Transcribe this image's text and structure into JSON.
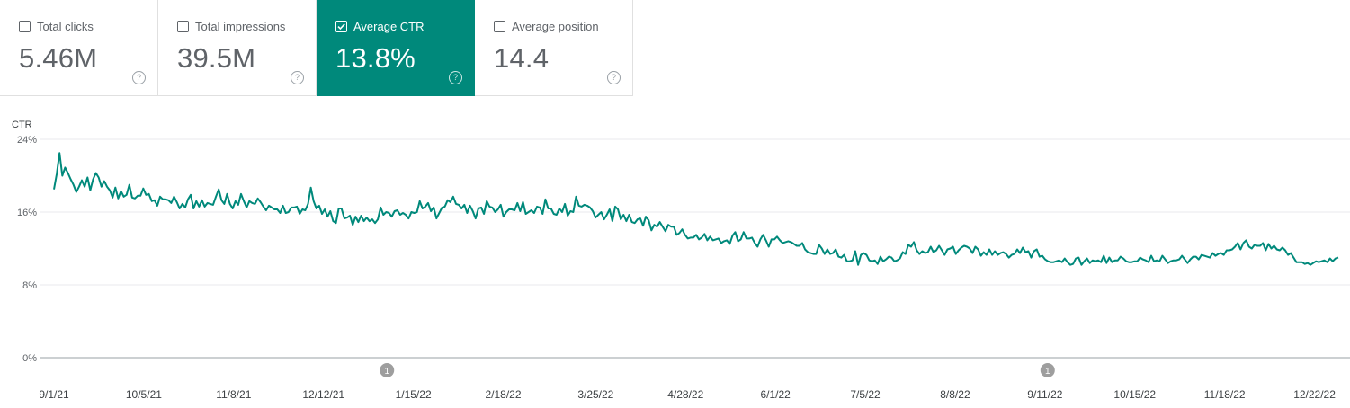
{
  "metrics": [
    {
      "label": "Total clicks",
      "value": "5.46M",
      "selected": false
    },
    {
      "label": "Total impressions",
      "value": "39.5M",
      "selected": false
    },
    {
      "label": "Average CTR",
      "value": "13.8%",
      "selected": true
    },
    {
      "label": "Average position",
      "value": "14.4",
      "selected": false
    }
  ],
  "help_glyph": "?",
  "chart_data": {
    "type": "line",
    "ylabel": "CTR",
    "ylim": [
      0,
      24
    ],
    "y_ticks": [
      "24%",
      "16%",
      "8%",
      "0%"
    ],
    "y_tick_values": [
      24,
      16,
      8,
      0
    ],
    "x_ticks": [
      "9/1/21",
      "10/5/21",
      "11/8/21",
      "12/12/21",
      "1/15/22",
      "2/18/22",
      "3/25/22",
      "4/28/22",
      "6/1/22",
      "7/5/22",
      "8/8/22",
      "9/11/22",
      "10/15/22",
      "11/18/22",
      "12/22/22"
    ],
    "annotations": [
      {
        "date": "1/5/22",
        "label": "1"
      },
      {
        "date": "9/12/22",
        "label": "1"
      }
    ],
    "line_color": "#00897b",
    "grid": true,
    "series": [
      {
        "x_start": "9/1/21",
        "x_end": "12/31/22",
        "values": [
          18.5,
          20.2,
          22.5,
          20.0,
          20.9,
          20.3,
          19.6,
          19.0,
          18.2,
          18.8,
          19.5,
          18.8,
          19.8,
          18.4,
          19.6,
          20.3,
          19.8,
          18.8,
          19.4,
          18.8,
          18.4,
          17.6,
          18.7,
          17.5,
          18.3,
          17.7,
          17.9,
          19.0,
          17.6,
          17.5,
          17.8,
          17.8,
          18.6,
          17.9,
          18.0,
          17.2,
          17.3,
          16.7,
          17.7,
          17.4,
          17.4,
          17.3,
          17.0,
          17.7,
          17.1,
          16.4,
          16.9,
          16.5,
          17.4,
          17.9,
          16.4,
          17.2,
          16.6,
          17.3,
          16.6,
          17.0,
          16.9,
          16.8,
          17.7,
          18.5,
          17.3,
          16.9,
          18.0,
          16.9,
          16.4,
          17.2,
          16.8,
          18.0,
          17.2,
          16.5,
          17.2,
          17.0,
          16.9,
          17.5,
          17.1,
          16.6,
          16.2,
          16.7,
          16.5,
          16.3,
          16.3,
          15.9,
          16.7,
          15.9,
          16.0,
          16.5,
          16.5,
          16.6,
          15.8,
          16.3,
          16.2,
          16.9,
          18.7,
          17.2,
          16.4,
          16.7,
          15.8,
          16.3,
          15.5,
          16.1,
          15.0,
          14.8,
          16.4,
          16.4,
          15.3,
          15.4,
          15.6,
          14.6,
          15.5,
          14.9,
          15.6,
          15.0,
          15.4,
          15.0,
          15.2,
          14.8,
          15.2,
          16.5,
          15.7,
          16.0,
          15.9,
          15.5,
          16.1,
          16.2,
          15.7,
          15.9,
          15.7,
          15.3,
          16.0,
          15.9,
          16.0,
          17.2,
          16.4,
          16.6,
          17.0,
          16.1,
          16.5,
          15.3,
          15.9,
          16.5,
          16.6,
          17.3,
          17.1,
          17.7,
          16.9,
          16.8,
          16.4,
          16.8,
          15.9,
          16.7,
          16.1,
          15.3,
          16.4,
          16.5,
          15.8,
          17.2,
          16.6,
          16.5,
          16.0,
          16.3,
          16.8,
          15.5,
          16.0,
          16.3,
          16.3,
          16.2,
          17.0,
          16.1,
          17.1,
          15.8,
          16.0,
          16.2,
          15.9,
          16.6,
          16.5,
          15.8,
          17.4,
          16.4,
          16.4,
          15.8,
          15.7,
          16.4,
          16.0,
          16.9,
          15.6,
          16.1,
          16.0,
          17.7,
          16.7,
          16.6,
          16.8,
          16.7,
          16.5,
          16.1,
          15.4,
          15.7,
          16.0,
          15.2,
          15.7,
          16.3,
          15.0,
          16.6,
          16.3,
          15.2,
          15.7,
          15.0,
          15.7,
          14.9,
          14.8,
          15.2,
          15.3,
          14.5,
          15.5,
          15.1,
          14.0,
          14.6,
          14.4,
          14.9,
          14.4,
          13.9,
          14.6,
          14.4,
          14.4,
          13.5,
          13.7,
          14.1,
          13.5,
          13.1,
          13.2,
          13.2,
          13.5,
          13.0,
          13.2,
          13.6,
          12.9,
          13.3,
          12.9,
          13.0,
          13.1,
          12.6,
          12.8,
          12.9,
          12.5,
          13.4,
          13.8,
          12.8,
          13.0,
          13.8,
          13.1,
          13.1,
          13.2,
          12.6,
          12.2,
          13.0,
          13.5,
          12.9,
          12.2,
          13.0,
          13.0,
          13.3,
          12.9,
          12.6,
          12.7,
          12.8,
          12.7,
          12.5,
          12.3,
          12.3,
          12.6,
          11.9,
          11.6,
          11.5,
          11.4,
          11.4,
          12.4,
          12.0,
          11.4,
          11.9,
          11.4,
          11.5,
          11.9,
          11.1,
          11.0,
          11.3,
          10.6,
          10.6,
          10.7,
          11.7,
          10.2,
          11.3,
          11.5,
          11.3,
          10.7,
          10.6,
          10.7,
          10.3,
          11.1,
          10.6,
          10.8,
          11.1,
          11.0,
          10.6,
          10.7,
          10.9,
          11.6,
          11.4,
          12.4,
          12.2,
          12.7,
          11.8,
          11.4,
          11.7,
          11.5,
          11.6,
          12.2,
          11.6,
          11.8,
          12.3,
          11.8,
          11.3,
          11.9,
          12.0,
          12.2,
          11.4,
          11.8,
          12.1,
          12.3,
          12.2,
          12.0,
          11.5,
          12.2,
          11.9,
          11.2,
          11.6,
          11.3,
          11.9,
          11.3,
          11.7,
          11.3,
          11.5,
          11.6,
          11.4,
          11.0,
          11.3,
          11.4,
          11.9,
          11.5,
          12.1,
          11.6,
          11.7,
          11.0,
          11.7,
          11.9,
          11.1,
          11.2,
          10.8,
          10.6,
          10.5,
          10.5,
          10.6,
          10.7,
          10.5,
          10.9,
          10.5,
          10.2,
          10.3,
          10.9,
          11.0,
          10.2,
          10.6,
          10.9,
          10.4,
          10.7,
          10.6,
          10.7,
          10.5,
          11.2,
          10.4,
          11.0,
          10.5,
          10.7,
          10.7,
          11.1,
          10.9,
          10.6,
          10.5,
          10.5,
          10.6,
          10.6,
          11.0,
          10.8,
          10.7,
          10.5,
          11.2,
          10.6,
          10.7,
          10.6,
          11.2,
          10.8,
          10.4,
          10.6,
          10.7,
          10.7,
          10.8,
          11.2,
          10.8,
          10.4,
          10.8,
          11.1,
          11.1,
          10.8,
          11.3,
          11.2,
          11.1,
          11.0,
          11.5,
          11.2,
          11.4,
          11.5,
          11.3,
          11.8,
          11.8,
          11.9,
          12.2,
          12.6,
          11.9,
          12.6,
          12.9,
          12.2,
          12.0,
          12.4,
          12.3,
          12.3,
          12.6,
          11.8,
          12.5,
          12.0,
          12.3,
          11.9,
          11.8,
          12.1,
          11.8,
          11.3,
          11.5,
          11.0,
          10.5,
          10.5,
          10.5,
          10.3,
          10.4,
          10.2,
          10.4,
          10.6,
          10.5,
          10.6,
          10.7,
          10.5,
          10.9,
          10.6,
          10.9,
          11.0
        ]
      }
    ]
  }
}
